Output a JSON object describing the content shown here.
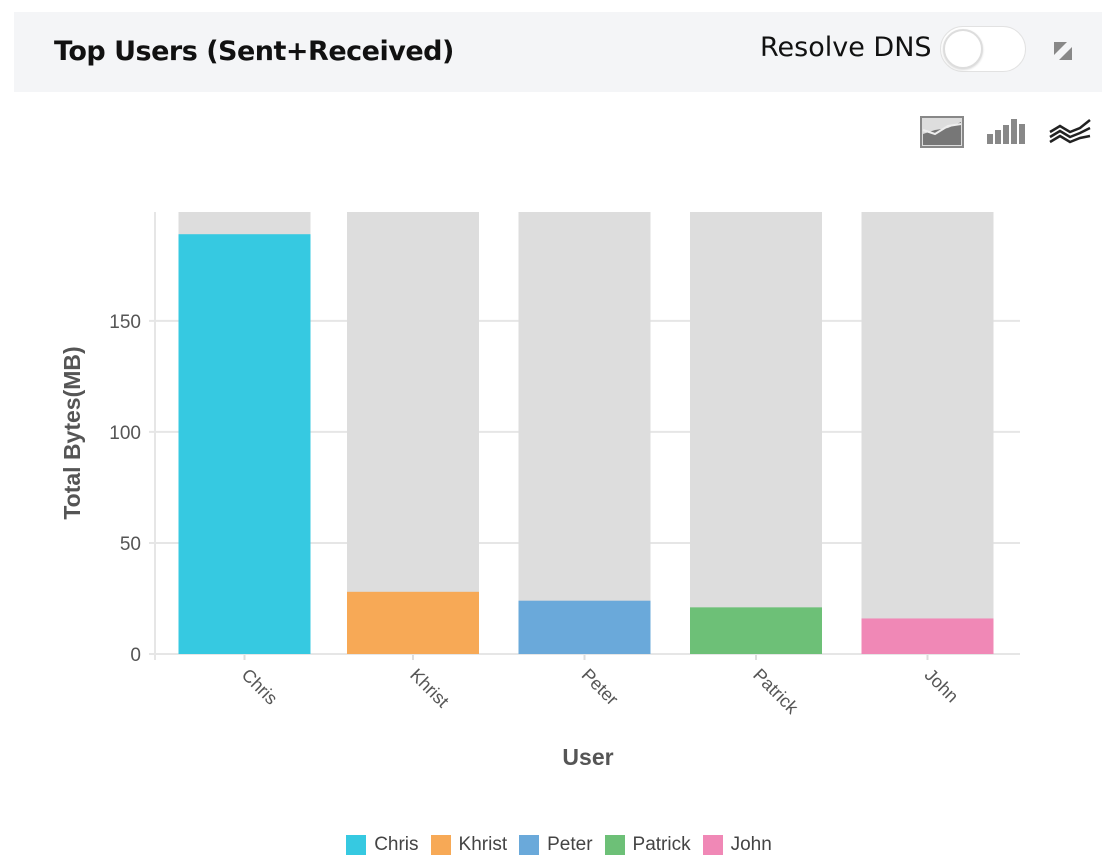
{
  "header": {
    "title": "Top Users (Sent+Received)",
    "resolve_dns_label": "Resolve DNS",
    "resolve_dns_on": false
  },
  "icons": {
    "expand": "expand-icon",
    "chart_types": [
      "area-chart-icon",
      "bar-chart-icon",
      "line-chart-icon"
    ]
  },
  "chart_data": {
    "type": "bar",
    "title": "",
    "xlabel": "User",
    "ylabel": "Total Bytes(MB)",
    "categories": [
      "Chris",
      "Khrist",
      "Peter",
      "Patrick",
      "John"
    ],
    "values": [
      189,
      28,
      24,
      21,
      16
    ],
    "colors": [
      "#36c9e1",
      "#f7a956",
      "#6aa9da",
      "#6dc077",
      "#f088b6"
    ],
    "background_bar_color": "#dddddd",
    "ylim": [
      0,
      199
    ],
    "yticks": [
      0,
      50,
      100,
      150
    ],
    "grid": true,
    "legend": "bottom"
  }
}
